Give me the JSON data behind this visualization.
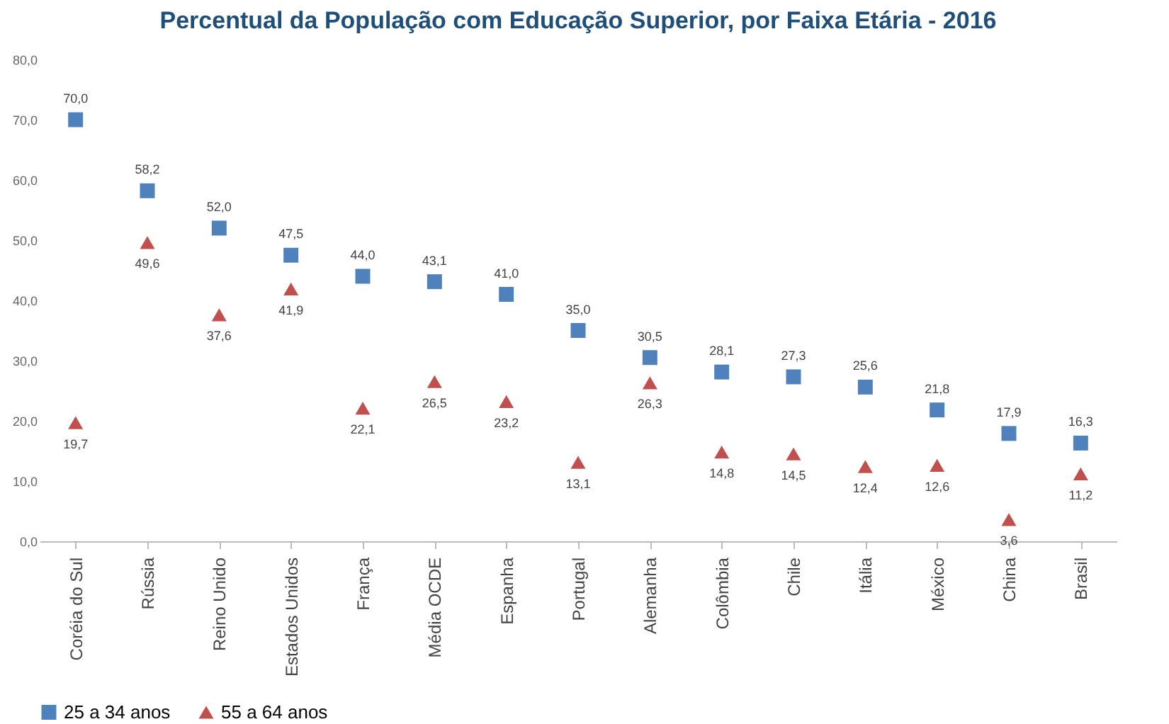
{
  "chart_data": {
    "type": "scatter",
    "title": "Percentual da População com Educação Superior, por Faixa Etária - 2016",
    "categories": [
      "Coréia do Sul",
      "Rússia",
      "Reino Unido",
      "Estados Unidos",
      "França",
      "Média OCDE",
      "Espanha",
      "Portugal",
      "Alemanha",
      "Colômbia",
      "Chile",
      "Itália",
      "México",
      "China",
      "Brasil"
    ],
    "series": [
      {
        "name": "25 a 34 anos",
        "color": "#4f81bd",
        "marker": "square",
        "values": [
          70.0,
          58.2,
          52.0,
          47.5,
          44.0,
          43.1,
          41.0,
          35.0,
          30.5,
          28.1,
          27.3,
          25.6,
          21.8,
          17.9,
          16.3
        ],
        "value_labels": [
          "70,0",
          "58,2",
          "52,0",
          "47,5",
          "44,0",
          "43,1",
          "41,0",
          "35,0",
          "30,5",
          "28,1",
          "27,3",
          "25,6",
          "21,8",
          "17,9",
          "16,3"
        ]
      },
      {
        "name": "55 a 64 anos",
        "color": "#c0504d",
        "marker": "triangle",
        "values": [
          19.7,
          49.6,
          37.6,
          41.9,
          22.1,
          26.5,
          23.2,
          13.1,
          26.3,
          14.8,
          14.5,
          12.4,
          12.6,
          3.6,
          11.2
        ],
        "value_labels": [
          "19,7",
          "49,6",
          "37,6",
          "41,9",
          "22,1",
          "26,5",
          "23,2",
          "13,1",
          "26,3",
          "14,8",
          "14,5",
          "12,4",
          "12,6",
          "3,6",
          "11,2"
        ]
      }
    ],
    "ylim": [
      0,
      80
    ],
    "yticks": [
      {
        "value": 0,
        "label": "0,0"
      },
      {
        "value": 10,
        "label": "10,0"
      },
      {
        "value": 20,
        "label": "20,0"
      },
      {
        "value": 30,
        "label": "30,0"
      },
      {
        "value": 40,
        "label": "40,0"
      },
      {
        "value": 50,
        "label": "50,0"
      },
      {
        "value": 60,
        "label": "60,0"
      },
      {
        "value": 70,
        "label": "70,0"
      },
      {
        "value": 80,
        "label": "80,0"
      }
    ],
    "grid": false,
    "legend": "bottom"
  }
}
